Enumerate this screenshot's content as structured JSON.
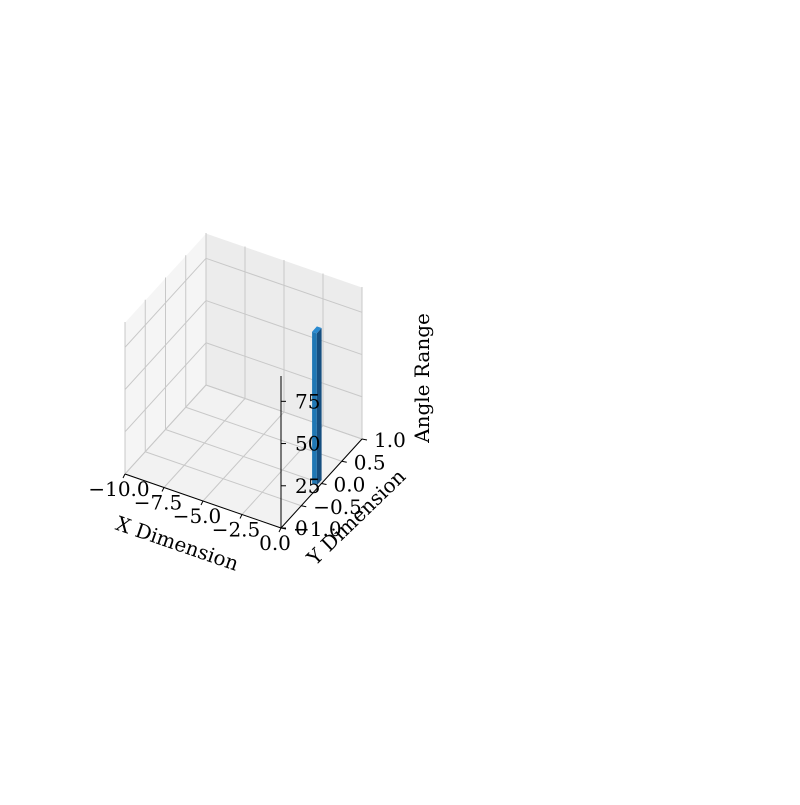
{
  "chart_data": {
    "type": "bar",
    "projection": "3d",
    "title": "",
    "xlabel": "X Dimension",
    "ylabel": "Y Dimension",
    "zlabel": "Angle Range",
    "x_ticks": [
      "−10.0",
      "−7.5",
      "−5.0",
      "−2.5",
      "0.0"
    ],
    "y_ticks": [
      "−1.0",
      "−0.5",
      "0.0",
      "0.5",
      "1.0"
    ],
    "z_ticks": [
      "0",
      "25",
      "50",
      "75"
    ],
    "xlim": [
      -10,
      0
    ],
    "ylim": [
      -1,
      1
    ],
    "zlim": [
      0,
      90
    ],
    "grid": true,
    "bars": [
      {
        "x": -0.3,
        "y": 0.0,
        "height": 90
      }
    ],
    "colors": {
      "bar_front": "#1f77b4",
      "bar_side": "#164f80",
      "bar_top": "#2a8ad0",
      "pane_floor": "#f2f2f2",
      "pane_back": "#ececec",
      "pane_left": "#f5f5f5",
      "grid": "#c8c8c8"
    }
  }
}
